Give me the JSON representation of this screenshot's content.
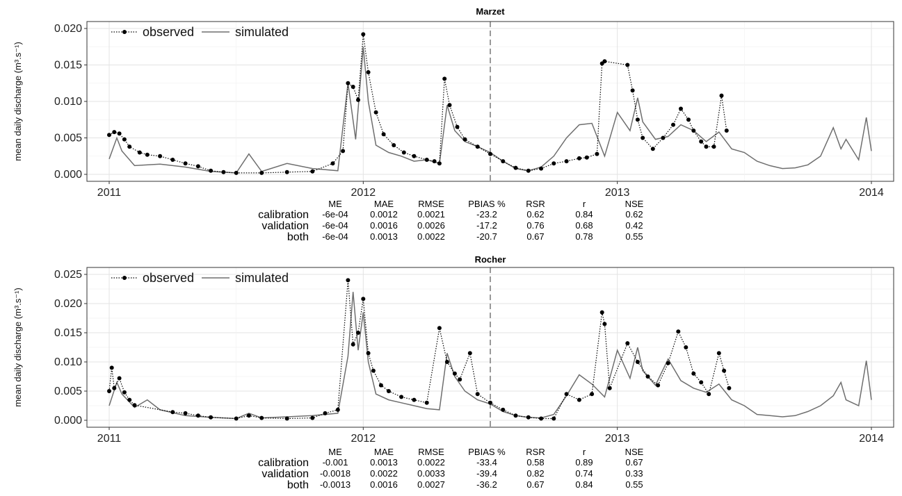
{
  "legend": {
    "observed": "observed",
    "simulated": "simulated"
  },
  "stats_headers": [
    "ME",
    "MAE",
    "RMSE",
    "PBIAS %",
    "RSR",
    "r",
    "NSE"
  ],
  "chart_data": [
    {
      "type": "line",
      "title": "Marzet",
      "ylabel": "mean daily discharge (m³.s⁻¹)",
      "ylim": [
        0.0,
        0.02
      ],
      "y_ticks": [
        "0.000",
        "0.005",
        "0.010",
        "0.015",
        "0.020"
      ],
      "y_tick_values": [
        0,
        0.005,
        0.01,
        0.015,
        0.02
      ],
      "x_ticks": [
        "2011",
        "2012",
        "2013",
        "2014"
      ],
      "x_tick_values": [
        2011.0,
        2012.0,
        2013.0,
        2014.0
      ],
      "xlim": [
        2011.0,
        2014.0
      ],
      "calibration_validation_split": 2012.5,
      "grid": true,
      "legend_position": "top-left",
      "series": [
        {
          "name": "observed",
          "style": "dotted line with points",
          "x": [
            2011.0,
            2011.02,
            2011.04,
            2011.06,
            2011.08,
            2011.12,
            2011.15,
            2011.2,
            2011.25,
            2011.3,
            2011.35,
            2011.4,
            2011.45,
            2011.5,
            2011.6,
            2011.7,
            2011.8,
            2011.88,
            2011.92,
            2011.94,
            2011.96,
            2011.98,
            2012.0,
            2012.02,
            2012.05,
            2012.08,
            2012.12,
            2012.16,
            2012.2,
            2012.25,
            2012.28,
            2012.3,
            2012.32,
            2012.34,
            2012.37,
            2012.4,
            2012.45,
            2012.5,
            2012.55,
            2012.6,
            2012.65,
            2012.7,
            2012.75,
            2012.8,
            2012.85,
            2012.88,
            2012.92,
            2012.94,
            2012.95,
            2013.04,
            2013.06,
            2013.08,
            2013.1,
            2013.14,
            2013.18,
            2013.22,
            2013.25,
            2013.28,
            2013.3,
            2013.33,
            2013.35,
            2013.38,
            2013.41,
            2013.43
          ],
          "values": [
            0.0054,
            0.0058,
            0.0056,
            0.0048,
            0.0038,
            0.003,
            0.0027,
            0.0025,
            0.002,
            0.0015,
            0.0011,
            0.0005,
            0.0003,
            0.0002,
            0.0002,
            0.0003,
            0.0004,
            0.0015,
            0.0032,
            0.0125,
            0.012,
            0.0102,
            0.0192,
            0.014,
            0.0085,
            0.0055,
            0.004,
            0.003,
            0.0025,
            0.002,
            0.0018,
            0.0015,
            0.0131,
            0.0095,
            0.0065,
            0.0048,
            0.0038,
            0.0028,
            0.0018,
            0.0009,
            0.0005,
            0.0008,
            0.0015,
            0.0018,
            0.0022,
            0.0023,
            0.0028,
            0.0152,
            0.0155,
            0.015,
            0.0115,
            0.0075,
            0.005,
            0.0035,
            0.005,
            0.0068,
            0.009,
            0.0075,
            0.006,
            0.0045,
            0.0038,
            0.0038,
            0.0108,
            0.006
          ]
        },
        {
          "name": "simulated",
          "style": "solid gray line",
          "x": [
            2011.0,
            2011.03,
            2011.05,
            2011.1,
            2011.2,
            2011.3,
            2011.4,
            2011.5,
            2011.55,
            2011.6,
            2011.7,
            2011.8,
            2011.9,
            2011.94,
            2011.97,
            2012.0,
            2012.02,
            2012.05,
            2012.1,
            2012.15,
            2012.2,
            2012.25,
            2012.3,
            2012.33,
            2012.36,
            2012.4,
            2012.45,
            2012.5,
            2012.55,
            2012.6,
            2012.65,
            2012.7,
            2012.75,
            2012.8,
            2012.85,
            2012.9,
            2012.95,
            2013.0,
            2013.05,
            2013.08,
            2013.1,
            2013.15,
            2013.2,
            2013.25,
            2013.3,
            2013.35,
            2013.4,
            2013.45,
            2013.5,
            2013.55,
            2013.6,
            2013.65,
            2013.7,
            2013.75,
            2013.8,
            2013.85,
            2013.88,
            2013.9,
            2013.95,
            2013.98,
            2014.0
          ],
          "values": [
            0.0021,
            0.005,
            0.0032,
            0.0012,
            0.0014,
            0.001,
            0.0004,
            0.0002,
            0.0028,
            0.0004,
            0.0015,
            0.0008,
            0.0005,
            0.0125,
            0.0048,
            0.0175,
            0.01,
            0.004,
            0.003,
            0.0025,
            0.0018,
            0.002,
            0.0015,
            0.0095,
            0.006,
            0.0045,
            0.0038,
            0.003,
            0.0018,
            0.0008,
            0.0005,
            0.001,
            0.0025,
            0.005,
            0.0068,
            0.007,
            0.0025,
            0.0085,
            0.006,
            0.0105,
            0.0072,
            0.0048,
            0.0052,
            0.0068,
            0.006,
            0.0045,
            0.0058,
            0.0035,
            0.003,
            0.0018,
            0.0012,
            0.0008,
            0.0009,
            0.0013,
            0.0025,
            0.0064,
            0.0035,
            0.0048,
            0.002,
            0.0078,
            0.0032
          ]
        }
      ],
      "stats": {
        "rows": [
          {
            "label": "calibration",
            "values": [
              "-6e-04",
              "0.0012",
              "0.0021",
              "-23.2",
              "0.62",
              "0.84",
              "0.62"
            ]
          },
          {
            "label": "validation",
            "values": [
              "-6e-04",
              "0.0016",
              "0.0026",
              "-17.2",
              "0.76",
              "0.68",
              "0.42"
            ]
          },
          {
            "label": "both",
            "values": [
              "-6e-04",
              "0.0013",
              "0.0022",
              "-20.7",
              "0.67",
              "0.78",
              "0.55"
            ]
          }
        ]
      }
    },
    {
      "type": "line",
      "title": "Rocher",
      "ylabel": "mean daily discharge (m³.s⁻¹)",
      "ylim": [
        0.0,
        0.025
      ],
      "y_ticks": [
        "0.000",
        "0.005",
        "0.010",
        "0.015",
        "0.020",
        "0.025"
      ],
      "y_tick_values": [
        0,
        0.005,
        0.01,
        0.015,
        0.02,
        0.025
      ],
      "x_ticks": [
        "2011",
        "2012",
        "2013",
        "2014"
      ],
      "x_tick_values": [
        2011.0,
        2012.0,
        2013.0,
        2014.0
      ],
      "xlim": [
        2011.0,
        2014.0
      ],
      "calibration_validation_split": 2012.5,
      "grid": true,
      "legend_position": "top-left",
      "series": [
        {
          "name": "observed",
          "style": "dotted line with points",
          "x": [
            2011.0,
            2011.01,
            2011.02,
            2011.04,
            2011.06,
            2011.08,
            2011.1,
            2011.25,
            2011.3,
            2011.35,
            2011.4,
            2011.5,
            2011.55,
            2011.6,
            2011.7,
            2011.8,
            2011.85,
            2011.9,
            2011.94,
            2011.96,
            2011.98,
            2012.0,
            2012.02,
            2012.04,
            2012.07,
            2012.1,
            2012.15,
            2012.2,
            2012.25,
            2012.3,
            2012.33,
            2012.36,
            2012.38,
            2012.42,
            2012.45,
            2012.5,
            2012.55,
            2012.6,
            2012.65,
            2012.7,
            2012.75,
            2012.8,
            2012.85,
            2012.9,
            2012.94,
            2012.95,
            2012.97,
            2013.04,
            2013.08,
            2013.12,
            2013.16,
            2013.2,
            2013.24,
            2013.27,
            2013.3,
            2013.33,
            2013.36,
            2013.4,
            2013.42,
            2013.44
          ],
          "values": [
            0.005,
            0.009,
            0.0055,
            0.0072,
            0.0048,
            0.0035,
            0.0026,
            0.0014,
            0.0012,
            0.0008,
            0.0005,
            0.0003,
            0.0008,
            0.0004,
            0.0003,
            0.0004,
            0.0012,
            0.0018,
            0.024,
            0.013,
            0.015,
            0.0208,
            0.0115,
            0.0085,
            0.006,
            0.005,
            0.004,
            0.0035,
            0.003,
            0.0158,
            0.01,
            0.008,
            0.007,
            0.0115,
            0.0045,
            0.003,
            0.0018,
            0.0008,
            0.0005,
            0.0003,
            0.0003,
            0.0045,
            0.0035,
            0.0045,
            0.0185,
            0.0165,
            0.0055,
            0.0132,
            0.01,
            0.0075,
            0.006,
            0.0098,
            0.0152,
            0.0125,
            0.008,
            0.0065,
            0.0045,
            0.0115,
            0.0085,
            0.0055
          ]
        },
        {
          "name": "simulated",
          "style": "solid gray line",
          "x": [
            2011.0,
            2011.03,
            2011.05,
            2011.1,
            2011.15,
            2011.2,
            2011.3,
            2011.4,
            2011.5,
            2011.55,
            2011.6,
            2011.7,
            2011.8,
            2011.9,
            2011.94,
            2011.96,
            2011.98,
            2012.0,
            2012.02,
            2012.05,
            2012.1,
            2012.15,
            2012.2,
            2012.25,
            2012.3,
            2012.33,
            2012.36,
            2012.4,
            2012.45,
            2012.5,
            2012.55,
            2012.6,
            2012.65,
            2012.7,
            2012.75,
            2012.8,
            2012.85,
            2012.9,
            2012.95,
            2013.0,
            2013.05,
            2013.08,
            2013.1,
            2013.15,
            2013.2,
            2013.25,
            2013.3,
            2013.35,
            2013.4,
            2013.45,
            2013.5,
            2013.55,
            2013.6,
            2013.65,
            2013.7,
            2013.75,
            2013.8,
            2013.85,
            2013.88,
            2013.9,
            2013.95,
            2013.98,
            2014.0
          ],
          "values": [
            0.0025,
            0.0065,
            0.0045,
            0.0022,
            0.0035,
            0.0018,
            0.0008,
            0.0005,
            0.0003,
            0.0012,
            0.0004,
            0.0006,
            0.0008,
            0.0012,
            0.011,
            0.022,
            0.012,
            0.0185,
            0.01,
            0.0045,
            0.0035,
            0.003,
            0.0025,
            0.002,
            0.0018,
            0.0115,
            0.0075,
            0.005,
            0.0035,
            0.0028,
            0.0015,
            0.0008,
            0.0005,
            0.0004,
            0.001,
            0.0042,
            0.0078,
            0.0062,
            0.004,
            0.012,
            0.0072,
            0.0125,
            0.0085,
            0.006,
            0.0105,
            0.0068,
            0.0055,
            0.0048,
            0.0062,
            0.0035,
            0.0025,
            0.001,
            0.0008,
            0.0006,
            0.0008,
            0.0015,
            0.0025,
            0.0042,
            0.0065,
            0.0035,
            0.0025,
            0.0102,
            0.0035
          ]
        }
      ],
      "stats": {
        "rows": [
          {
            "label": "calibration",
            "values": [
              "-0.001",
              "0.0013",
              "0.0022",
              "-33.4",
              "0.58",
              "0.89",
              "0.67"
            ]
          },
          {
            "label": "validation",
            "values": [
              "-0.0018",
              "0.0022",
              "0.0033",
              "-39.4",
              "0.82",
              "0.74",
              "0.33"
            ]
          },
          {
            "label": "both",
            "values": [
              "-0.0013",
              "0.0016",
              "0.0027",
              "-36.2",
              "0.67",
              "0.84",
              "0.55"
            ]
          }
        ]
      }
    }
  ]
}
